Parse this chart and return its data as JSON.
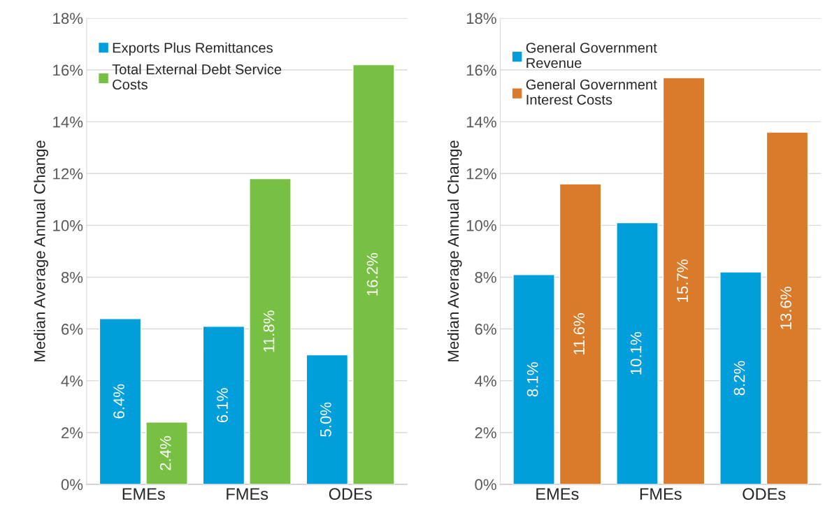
{
  "chart_data": [
    {
      "type": "bar",
      "ylabel": "Median Average Annual Change",
      "categories": [
        "EMEs",
        "FMEs",
        "ODEs"
      ],
      "series": [
        {
          "name": "Exports Plus Remittances",
          "color": "#009fdb",
          "values": [
            6.4,
            6.1,
            5.0
          ],
          "value_labels": [
            "6.4%",
            "6.1%",
            "5.0%"
          ]
        },
        {
          "name": "Total External Debt Service\nCosts",
          "color": "#77c043",
          "values": [
            2.4,
            11.8,
            16.2
          ],
          "value_labels": [
            "2.4%",
            "11.8%",
            "16.2%"
          ]
        }
      ],
      "ylim": [
        0,
        18
      ],
      "yticks": [
        {
          "value": 0,
          "label": "0%"
        },
        {
          "value": 2,
          "label": "2%"
        },
        {
          "value": 4,
          "label": "4%"
        },
        {
          "value": 6,
          "label": "6%"
        },
        {
          "value": 8,
          "label": "8%"
        },
        {
          "value": 10,
          "label": "10%"
        },
        {
          "value": 12,
          "label": "12%"
        },
        {
          "value": 14,
          "label": "14%"
        },
        {
          "value": 16,
          "label": "16%"
        },
        {
          "value": 18,
          "label": "18%"
        }
      ],
      "grid": "y",
      "legend": "top left"
    },
    {
      "type": "bar",
      "ylabel": "Median Average Annual Change",
      "categories": [
        "EMEs",
        "FMEs",
        "ODEs"
      ],
      "series": [
        {
          "name": "General Government\nRevenue",
          "color": "#009fdb",
          "values": [
            8.1,
            10.1,
            8.2
          ],
          "value_labels": [
            "8.1%",
            "10.1%",
            "8.2%"
          ]
        },
        {
          "name": "General Government\nInterest Costs",
          "color": "#d97b2b",
          "values": [
            11.6,
            15.7,
            13.6
          ],
          "value_labels": [
            "11.6%",
            "15.7%",
            "13.6%"
          ]
        }
      ],
      "ylim": [
        0,
        18
      ],
      "yticks": [
        {
          "value": 0,
          "label": "0%"
        },
        {
          "value": 2,
          "label": "2%"
        },
        {
          "value": 4,
          "label": "4%"
        },
        {
          "value": 6,
          "label": "6%"
        },
        {
          "value": 8,
          "label": "8%"
        },
        {
          "value": 10,
          "label": "10%"
        },
        {
          "value": 12,
          "label": "12%"
        },
        {
          "value": 14,
          "label": "14%"
        },
        {
          "value": 16,
          "label": "16%"
        },
        {
          "value": 18,
          "label": "18%"
        }
      ],
      "grid": "y",
      "legend": "top left"
    }
  ]
}
